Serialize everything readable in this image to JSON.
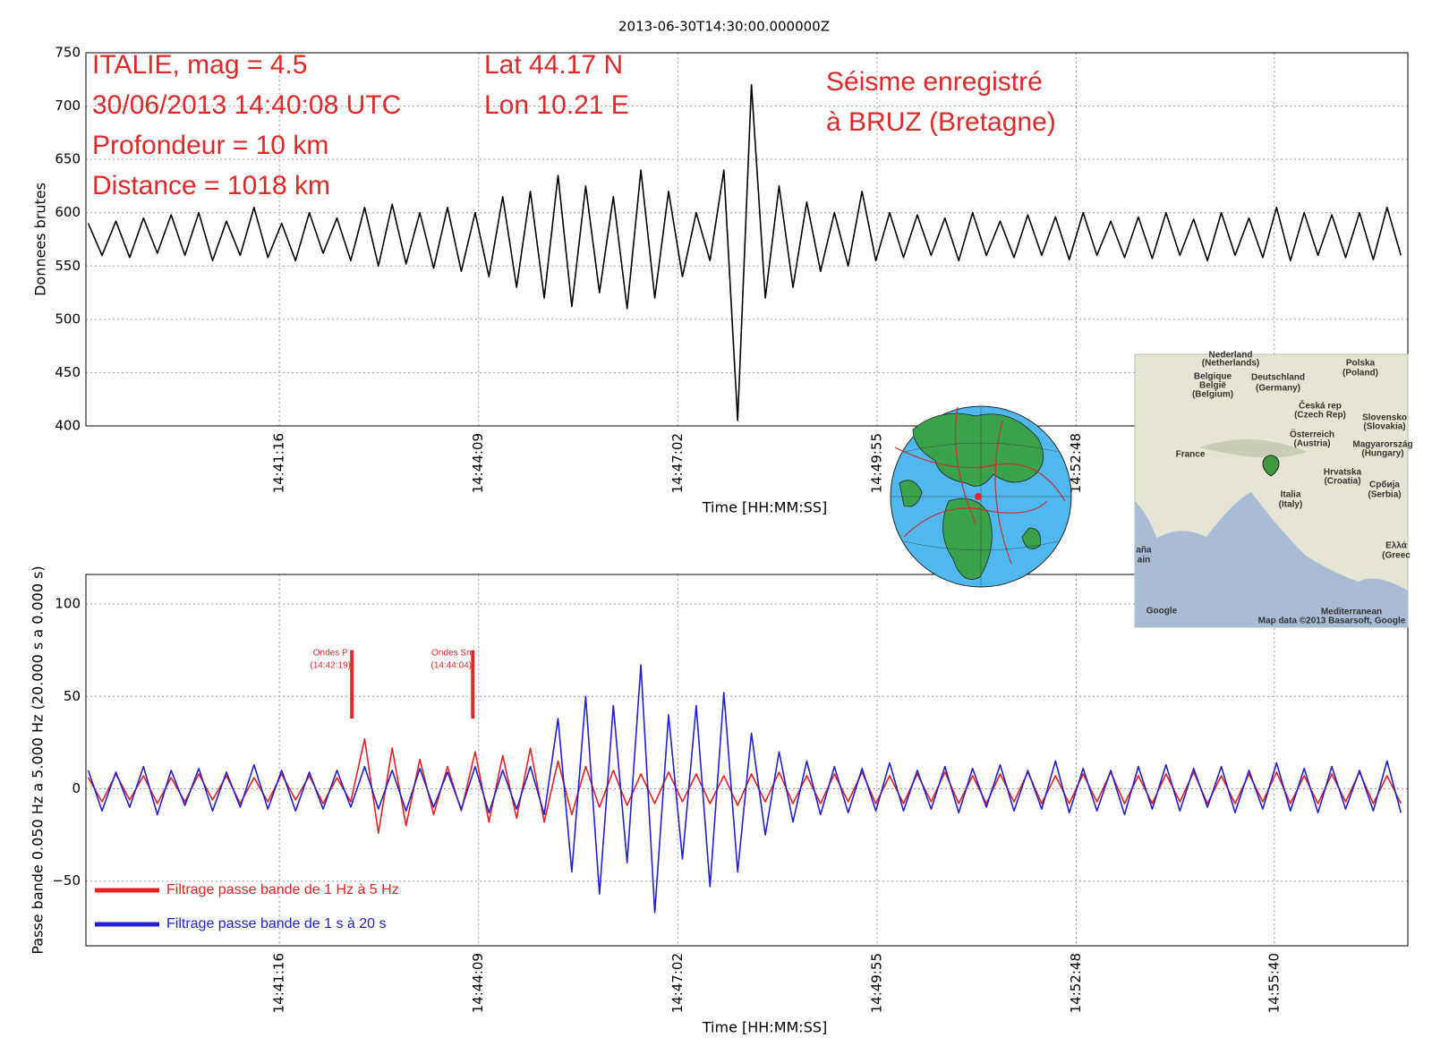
{
  "header": {
    "title": "2013-06-30T14:30:00.000000Z"
  },
  "chart_data": [
    {
      "type": "line",
      "ylabel": "Donnees brutes",
      "xlabel": "Time [HH:MM:SS]",
      "xlim": [
        52708,
        53856
      ],
      "ylim": [
        400,
        750
      ],
      "yticks": [
        400,
        450,
        500,
        550,
        600,
        650,
        700,
        750
      ],
      "xticks": [
        {
          "value": 52876,
          "label": "14:41:16"
        },
        {
          "value": 53049,
          "label": "14:44:09"
        },
        {
          "value": 53222,
          "label": "14:47:02"
        },
        {
          "value": 53395,
          "label": "14:49:55"
        },
        {
          "value": 53568,
          "label": "14:52:48"
        },
        {
          "value": 53740,
          "label": "14:55:40"
        }
      ],
      "grid": true,
      "annotations": [
        "ITALIE, mag = 4.5",
        "30/06/2013 14:40:08 UTC",
        "Profondeur = 10 km",
        "Distance = 1018 km",
        "Lat 44.17 N",
        "Lon 10.21 E",
        "Séisme enregistré",
        "à BRUZ (Bretagne)"
      ],
      "x": [
        52710,
        52722,
        52734,
        52746,
        52758,
        52770,
        52782,
        52794,
        52806,
        52818,
        52830,
        52842,
        52854,
        52866,
        52878,
        52890,
        52902,
        52914,
        52926,
        52938,
        52950,
        52962,
        52974,
        52986,
        52998,
        53010,
        53022,
        53034,
        53046,
        53058,
        53070,
        53082,
        53094,
        53106,
        53118,
        53130,
        53142,
        53154,
        53166,
        53178,
        53190,
        53202,
        53214,
        53226,
        53238,
        53250,
        53262,
        53274,
        53286,
        53298,
        53310,
        53322,
        53334,
        53346,
        53358,
        53370,
        53382,
        53394,
        53406,
        53418,
        53430,
        53442,
        53454,
        53466,
        53478,
        53490,
        53502,
        53514,
        53526,
        53538,
        53550,
        53562,
        53574,
        53586,
        53598,
        53610,
        53622,
        53634,
        53646,
        53658,
        53670,
        53682,
        53694,
        53706,
        53718,
        53730,
        53742,
        53754,
        53766,
        53778,
        53790,
        53802,
        53814,
        53826,
        53838,
        53850
      ],
      "series": [
        {
          "color": "#000000",
          "values": [
            590,
            560,
            592,
            558,
            595,
            562,
            598,
            560,
            600,
            555,
            592,
            560,
            605,
            558,
            590,
            555,
            600,
            562,
            595,
            555,
            605,
            550,
            608,
            552,
            600,
            548,
            605,
            545,
            600,
            540,
            615,
            530,
            620,
            520,
            635,
            512,
            625,
            525,
            615,
            510,
            640,
            520,
            620,
            540,
            600,
            555,
            640,
            405,
            720,
            520,
            625,
            530,
            610,
            545,
            600,
            550,
            620,
            555,
            600,
            558,
            598,
            560,
            595,
            555,
            600,
            560,
            592,
            558,
            598,
            560,
            596,
            556,
            600,
            560,
            592,
            558,
            596,
            557,
            600,
            560,
            594,
            555,
            600,
            560,
            595,
            558,
            605,
            555,
            600,
            560,
            598,
            558,
            600,
            556,
            605,
            560
          ]
        }
      ]
    },
    {
      "type": "line",
      "ylabel": "Passe bande 0.050 Hz a 5.000 Hz (20.000 s a 0.000 s)",
      "xlabel": "Time [HH:MM:SS]",
      "xlim": [
        52708,
        53856
      ],
      "ylim": [
        -85,
        116
      ],
      "yticks": [
        {
          "value": -50,
          "label": "−50"
        },
        0,
        50,
        100
      ],
      "xticks": [
        {
          "value": 52876,
          "label": "14:41:16"
        },
        {
          "value": 53049,
          "label": "14:44:09"
        },
        {
          "value": 53222,
          "label": "14:47:02"
        },
        {
          "value": 53395,
          "label": "14:49:55"
        },
        {
          "value": 53568,
          "label": "14:52:48"
        },
        {
          "value": 53740,
          "label": "14:55:40"
        }
      ],
      "grid": true,
      "legend": "lower left",
      "markers": [
        {
          "text": "Ondes P",
          "time": "(14:42:19)",
          "x": 52939,
          "y": [
            38,
            75
          ]
        },
        {
          "text": "Ondes Sn",
          "time": "(14:44:04)",
          "x": 53044,
          "y": [
            38,
            75
          ]
        }
      ],
      "x": [
        52710,
        52722,
        52734,
        52746,
        52758,
        52770,
        52782,
        52794,
        52806,
        52818,
        52830,
        52842,
        52854,
        52866,
        52878,
        52890,
        52902,
        52914,
        52926,
        52938,
        52950,
        52962,
        52974,
        52986,
        52998,
        53010,
        53022,
        53034,
        53046,
        53058,
        53070,
        53082,
        53094,
        53106,
        53118,
        53130,
        53142,
        53154,
        53166,
        53178,
        53190,
        53202,
        53214,
        53226,
        53238,
        53250,
        53262,
        53274,
        53286,
        53298,
        53310,
        53322,
        53334,
        53346,
        53358,
        53370,
        53382,
        53394,
        53406,
        53418,
        53430,
        53442,
        53454,
        53466,
        53478,
        53490,
        53502,
        53514,
        53526,
        53538,
        53550,
        53562,
        53574,
        53586,
        53598,
        53610,
        53622,
        53634,
        53646,
        53658,
        53670,
        53682,
        53694,
        53706,
        53718,
        53730,
        53742,
        53754,
        53766,
        53778,
        53790,
        53802,
        53814,
        53826,
        53838,
        53850
      ],
      "series": [
        {
          "name": "Filtrage passe bande de 1 Hz à 5 Hz",
          "color": "#e82020",
          "values": [
            6,
            -7,
            8,
            -6,
            7,
            -8,
            6,
            -7,
            8,
            -6,
            7,
            -8,
            6,
            -7,
            8,
            -6,
            7,
            -8,
            6,
            -7,
            27,
            -24,
            22,
            -20,
            16,
            -14,
            12,
            -12,
            20,
            -18,
            18,
            -16,
            22,
            -18,
            15,
            -14,
            12,
            -10,
            10,
            -9,
            8,
            -8,
            9,
            -7,
            8,
            -8,
            7,
            -9,
            8,
            -7,
            9,
            -8,
            7,
            -8,
            8,
            -7,
            9,
            -8,
            7,
            -8,
            8,
            -7,
            9,
            -8,
            7,
            -8,
            8,
            -7,
            9,
            -8,
            7,
            -8,
            8,
            -7,
            9,
            -8,
            7,
            -8,
            8,
            -7,
            9,
            -8,
            7,
            -8,
            8,
            -7,
            9,
            -8,
            7,
            -8,
            8,
            -7,
            9,
            -8,
            7,
            -8
          ]
        },
        {
          "name": "Filtrage passe bande de 1 s à 20 s",
          "color": "#2020d0",
          "values": [
            10,
            -12,
            9,
            -10,
            12,
            -14,
            10,
            -9,
            11,
            -12,
            9,
            -10,
            13,
            -11,
            10,
            -12,
            9,
            -11,
            10,
            -10,
            12,
            -11,
            10,
            -12,
            11,
            -10,
            9,
            -11,
            12,
            -13,
            10,
            -11,
            12,
            -14,
            38,
            -45,
            50,
            -57,
            45,
            -40,
            67,
            -67,
            40,
            -38,
            45,
            -53,
            52,
            -45,
            30,
            -25,
            20,
            -18,
            15,
            -14,
            12,
            -13,
            11,
            -12,
            14,
            -12,
            10,
            -11,
            12,
            -13,
            11,
            -10,
            13,
            -12,
            10,
            -11,
            15,
            -13,
            11,
            -12,
            10,
            -14,
            12,
            -11,
            13,
            -12,
            11,
            -10,
            12,
            -13,
            10,
            -11,
            14,
            -12,
            11,
            -13,
            12,
            -11,
            10,
            -12,
            15,
            -13
          ]
        }
      ]
    }
  ],
  "inset_map": {
    "labels": [
      "Nederland",
      "(Netherlands)",
      "Belgique",
      "België",
      "(Belgium)",
      "Deutschland",
      "(Germany)",
      "Polska",
      "(Poland)",
      "Česká rep",
      "(Czech Rep)",
      "Slovensko",
      "(Slovakia)",
      "Österreich",
      "(Austria)",
      "Magyarország",
      "(Hungary)",
      "France",
      "Hrvatska",
      "(Croatia)",
      "Србија",
      "(Serbia)",
      "Italia",
      "(Italy)",
      "aña",
      "ain",
      "Ελλά",
      "(Greec",
      "Mediterranean",
      "Google",
      "Map data ©2013 Basarsoft, Google"
    ]
  }
}
